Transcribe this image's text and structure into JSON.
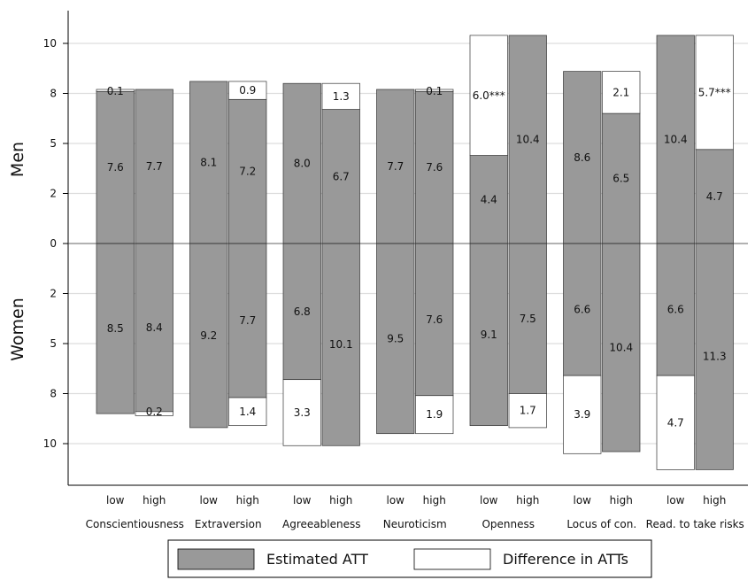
{
  "chart_data": {
    "type": "bar",
    "subtype": "stacked diverging (men above, women below)",
    "ylabel_top": "Men",
    "ylabel_bottom": "Women",
    "ytick_labels": {
      "men": [
        "0",
        "2",
        "5",
        "8",
        "10"
      ],
      "women": [
        "2",
        "5",
        "8",
        "10"
      ]
    },
    "ytick_values": {
      "men": [
        0,
        2.5,
        5,
        7.5,
        10
      ],
      "women": [
        2.5,
        5,
        7.5,
        10
      ]
    },
    "ylim": [
      -12,
      12
    ],
    "grid": "horizontal",
    "colors": {
      "estimated": "#999999",
      "difference": "#ffffff",
      "grid": "#dddddd"
    },
    "legend": {
      "position": "bottom",
      "entries": [
        {
          "label": "Estimated ATT",
          "color": "#999999"
        },
        {
          "label": "Difference in ATTs",
          "color": "#ffffff"
        }
      ]
    },
    "groups": [
      {
        "name": "Conscientiousness",
        "bars": [
          {
            "level": "low",
            "men_est": 7.6,
            "men_est_label": "7.6",
            "men_diff": 0.1,
            "men_diff_label": "0.1",
            "women_est": 8.5,
            "women_est_label": "8.5",
            "women_diff": 0,
            "women_diff_label": ""
          },
          {
            "level": "high",
            "men_est": 7.7,
            "men_est_label": "7.7",
            "men_diff": 0,
            "men_diff_label": "",
            "women_est": 8.4,
            "women_est_label": "8.4",
            "women_diff": 0.2,
            "women_diff_label": "0.2"
          }
        ]
      },
      {
        "name": "Extraversion",
        "bars": [
          {
            "level": "low",
            "men_est": 8.1,
            "men_est_label": "8.1",
            "men_diff": 0,
            "men_diff_label": "",
            "women_est": 9.2,
            "women_est_label": "9.2",
            "women_diff": 0,
            "women_diff_label": ""
          },
          {
            "level": "high",
            "men_est": 7.2,
            "men_est_label": "7.2",
            "men_diff": 0.9,
            "men_diff_label": "0.9",
            "women_est": 7.7,
            "women_est_label": "7.7",
            "women_diff": 1.4,
            "women_diff_label": "1.4"
          }
        ]
      },
      {
        "name": "Agreeableness",
        "bars": [
          {
            "level": "low",
            "men_est": 8.0,
            "men_est_label": "8.0",
            "men_diff": 0,
            "men_diff_label": "",
            "women_est": 6.8,
            "women_est_label": "6.8",
            "women_diff": 3.3,
            "women_diff_label": "3.3"
          },
          {
            "level": "high",
            "men_est": 6.7,
            "men_est_label": "6.7",
            "men_diff": 1.3,
            "men_diff_label": "1.3",
            "women_est": 10.1,
            "women_est_label": "10.1",
            "women_diff": 0,
            "women_diff_label": ""
          }
        ]
      },
      {
        "name": "Neuroticism",
        "bars": [
          {
            "level": "low",
            "men_est": 7.7,
            "men_est_label": "7.7",
            "men_diff": 0,
            "men_diff_label": "",
            "women_est": 9.5,
            "women_est_label": "9.5",
            "women_diff": 0,
            "women_diff_label": ""
          },
          {
            "level": "high",
            "men_est": 7.6,
            "men_est_label": "7.6",
            "men_diff": 0.1,
            "men_diff_label": "0.1",
            "women_est": 7.6,
            "women_est_label": "7.6",
            "women_diff": 1.9,
            "women_diff_label": "1.9"
          }
        ]
      },
      {
        "name": "Openness",
        "bars": [
          {
            "level": "low",
            "men_est": 4.4,
            "men_est_label": "4.4",
            "men_diff": 6.0,
            "men_diff_label": "6.0***",
            "women_est": 9.1,
            "women_est_label": "9.1",
            "women_diff": 0,
            "women_diff_label": ""
          },
          {
            "level": "high",
            "men_est": 10.4,
            "men_est_label": "10.4",
            "men_diff": 0,
            "men_diff_label": "",
            "women_est": 7.5,
            "women_est_label": "7.5",
            "women_diff": 1.7,
            "women_diff_label": "1.7"
          }
        ]
      },
      {
        "name": "Locus of con.",
        "bars": [
          {
            "level": "low",
            "men_est": 8.6,
            "men_est_label": "8.6",
            "men_diff": 0,
            "men_diff_label": "",
            "women_est": 6.6,
            "women_est_label": "6.6",
            "women_diff": 3.9,
            "women_diff_label": "3.9"
          },
          {
            "level": "high",
            "men_est": 6.5,
            "men_est_label": "6.5",
            "men_diff": 2.1,
            "men_diff_label": "2.1",
            "women_est": 10.4,
            "women_est_label": "10.4",
            "women_diff": 0,
            "women_diff_label": ""
          }
        ]
      },
      {
        "name": "Read. to take risks",
        "bars": [
          {
            "level": "low",
            "men_est": 10.4,
            "men_est_label": "10.4",
            "men_diff": 0,
            "men_diff_label": "",
            "women_est": 6.6,
            "women_est_label": "6.6",
            "women_diff": 4.7,
            "women_diff_label": "4.7"
          },
          {
            "level": "high",
            "men_est": 4.7,
            "men_est_label": "4.7",
            "men_diff": 5.7,
            "men_diff_label": "5.7***",
            "women_est": 11.3,
            "women_est_label": "11.3",
            "women_diff": 0,
            "women_diff_label": ""
          }
        ]
      }
    ]
  }
}
